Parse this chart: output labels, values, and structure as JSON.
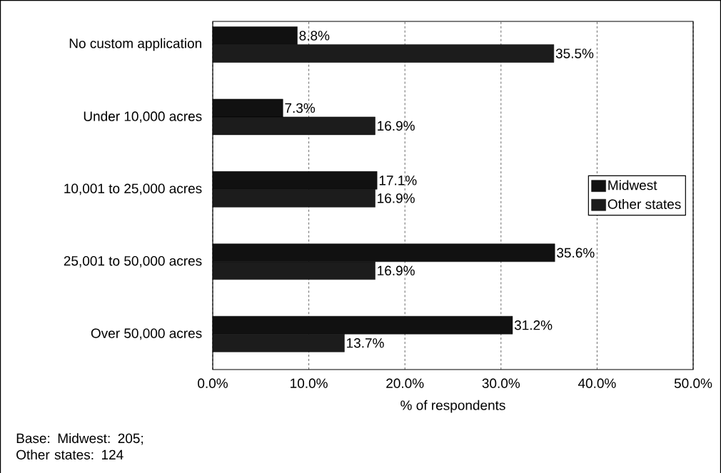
{
  "chart_data": {
    "type": "bar",
    "orientation": "horizontal",
    "xlabel": "% of respondents",
    "categories": [
      "No custom application",
      "Under 10,000 acres",
      "10,001 to 25,000 acres",
      "25,001 to 50,000 acres",
      "Over 50,000 acres"
    ],
    "series": [
      {
        "name": "Midwest",
        "color": "#111111",
        "values": [
          8.8,
          7.3,
          17.1,
          35.6,
          31.2
        ],
        "value_labels": [
          "8.8%",
          "7.3%",
          "17.1%",
          "35.6%",
          "31.2%"
        ]
      },
      {
        "name": "Other states",
        "color": "#1c1c1c",
        "values": [
          35.5,
          16.9,
          16.9,
          16.9,
          13.7
        ],
        "value_labels": [
          "35.5%",
          "16.9%",
          "16.9%",
          "16.9%",
          "13.7%"
        ]
      }
    ],
    "xlim": [
      0,
      50
    ],
    "xticks": [
      {
        "value": 0,
        "label": "0.0%"
      },
      {
        "value": 10,
        "label": "10.0%"
      },
      {
        "value": 20,
        "label": "20.0%"
      },
      {
        "value": 30,
        "label": "30.0%"
      },
      {
        "value": 40,
        "label": "40.0%"
      },
      {
        "value": 50,
        "label": "50.0%"
      }
    ],
    "grid": "x",
    "legend": "right",
    "annotations": [
      "Base:  Midwest: 205; Other states: 124"
    ]
  }
}
